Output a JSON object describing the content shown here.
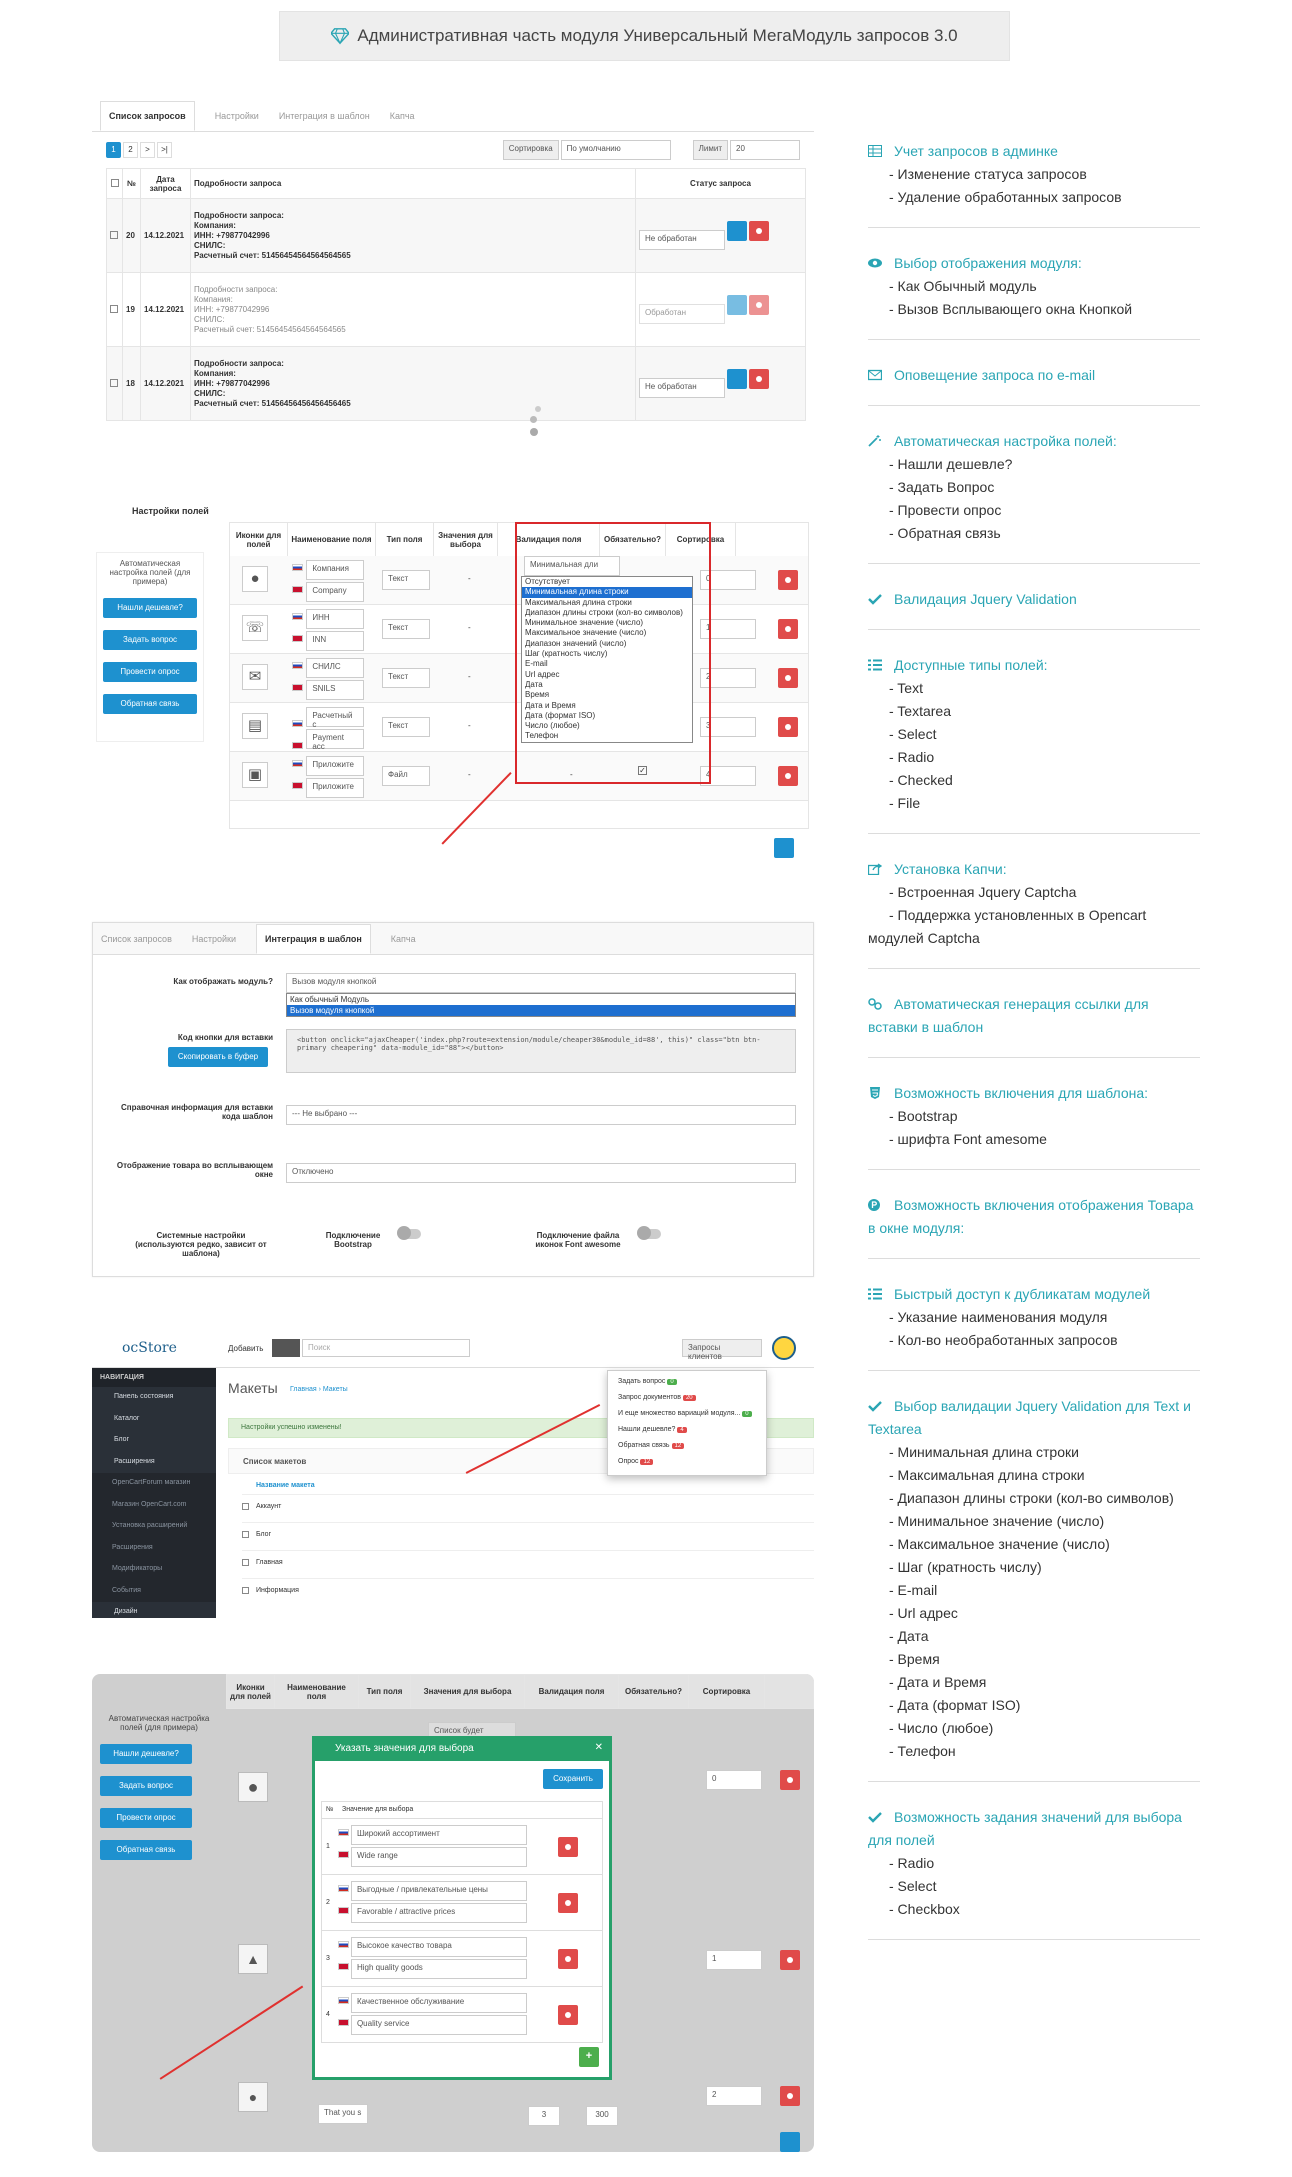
{
  "header": {
    "title": "Административная часть модуля Универсальный МегаМодуль запросов 3.0"
  },
  "colors": {
    "accent": "#2aa5b4",
    "primary": "#1e91cf",
    "danger": "#e04b4a",
    "success": "#4cae4c"
  },
  "features": [
    {
      "icon": "table-icon",
      "title": "Учет запросов в админке",
      "items": [
        "- Изменение статуса запросов",
        "- Удаление обработанных запросов"
      ]
    },
    {
      "icon": "eye-icon",
      "title": "Выбор отображения модуля:",
      "items": [
        "- Как Обычный модуль",
        "- Вызов Всплывающего окна Кнопкой"
      ]
    },
    {
      "icon": "envelope-icon",
      "title": "Оповещение запроса по e-mail",
      "items": []
    },
    {
      "icon": "magic-icon",
      "title": "Автоматическая настройка полей:",
      "items": [
        "- Нашли дешевле?",
        "- Задать Вопрос",
        "- Провести опрос",
        "- Обратная связь"
      ]
    },
    {
      "icon": "check-icon",
      "title": "Валидация Jquery Validation",
      "items": []
    },
    {
      "icon": "list-icon",
      "title": "Доступные типы полей:",
      "items": [
        "- Text",
        "- Textarea",
        "- Select",
        "- Radio",
        "- Checked",
        "- File"
      ]
    },
    {
      "icon": "share-icon",
      "title": "Установка Капчи:",
      "items": [
        "- Встроенная Jquery Captcha",
        "- Поддержка установленных в Opencart модулей Captcha"
      ]
    },
    {
      "icon": "link-icon",
      "title": "Автоматическая генерация ссылки для вставки в шаблон",
      "items": []
    },
    {
      "icon": "css3-icon",
      "title": "Возможность включения для шаблона:",
      "items": [
        "- Bootstrap",
        "- шрифта Font amesome"
      ]
    },
    {
      "icon": "product-hunt-icon",
      "title": "Возможность включения отображения Товара в окне модуля:",
      "items": []
    },
    {
      "icon": "list-icon",
      "title": "Быстрый доступ к дубликатам модулей",
      "items": [
        "- Указание наименования модуля",
        "- Кол-во необработанных запросов"
      ]
    },
    {
      "icon": "check-icon",
      "title": "Выбор валидации Jquery Validation для Text и Textarea",
      "items": [
        "- Минимальная длина строки",
        "- Максимальная длина строки",
        "- Диапазон длины строки (кол-во символов)",
        "- Минимальное значение (число)",
        "- Максимальное значение (число)",
        "- Шаг (кратность числу)",
        "- E-mail",
        "- Url адрес",
        "- Дата",
        "- Время",
        "- Дата и Время",
        "- Дата (формат ISO)",
        "- Число (любое)",
        "- Телефон"
      ]
    },
    {
      "icon": "check-icon",
      "title": "Возможность задания значений для выбора для полей",
      "items": [
        "- Radio",
        "- Select",
        "- Checkbox"
      ]
    }
  ],
  "shot1": {
    "tabs": [
      "Список запросов",
      "Настройки",
      "Интеграция в шаблон",
      "Капча"
    ],
    "pages": [
      "1",
      "2",
      ">",
      ">|"
    ],
    "sort_label": "Сортировка",
    "sort_value": "По умолчанию",
    "limit_label": "Лимит",
    "limit_value": "20",
    "headers": [
      "№",
      "Дата запроса",
      "Подробности запроса",
      "Статус запроса"
    ],
    "rows": [
      {
        "num": "20",
        "date": "14.12.2021",
        "l1": "Подробности запроса:",
        "l2": "Компания:",
        "l3": "ИНН: +79877042996",
        "l4": "СНИЛС:",
        "l5": "Расчетный счет: 51456454564564564565",
        "status": "Не обработан"
      },
      {
        "num": "19",
        "date": "14.12.2021",
        "l1": "Подробности запроса:",
        "l2": "Компания:",
        "l3": "ИНН: +79877042996",
        "l4": "СНИЛС:",
        "l5": "Расчетный счет: 51456454564564564565",
        "status": "Обработан"
      },
      {
        "num": "18",
        "date": "14.12.2021",
        "l1": "Подробности запроса:",
        "l2": "Компания:",
        "l3": "ИНН: +79877042996",
        "l4": "СНИЛС:",
        "l5": "Расчетный счет: 51456456456456456465",
        "status": "Не обработан"
      }
    ]
  },
  "shot2": {
    "title": "Настройки полей",
    "auto_note": "Автоматическая настройка полей (для примера)",
    "buttons": [
      "Нашли дешевле?",
      "Задать вопрос",
      "Провести опрос",
      "Обратная связь"
    ],
    "headers": [
      "Иконки для полей",
      "Наименование поля",
      "Тип поля",
      "Значения для выбора",
      "Валидация поля",
      "Обязательно?",
      "Сортировка"
    ],
    "rows": [
      {
        "ru": "Компания",
        "en": "Company",
        "type": "Текст",
        "sort": "0"
      },
      {
        "ru": "ИНН",
        "en": "INN",
        "type": "Текст",
        "sort": "1"
      },
      {
        "ru": "СНИЛС",
        "en": "SNILS",
        "type": "Текст",
        "sort": "2"
      },
      {
        "ru": "Расчетный с",
        "en": "Payment acc",
        "type": "Текст",
        "sort": "3"
      },
      {
        "ru": "Приложите",
        "en": "Приложите",
        "type": "Файл",
        "sort": "4"
      }
    ],
    "dash": "-",
    "validation_selected": "Минимальная дли",
    "validation_options": [
      "Отсутствует",
      "Минимальная длина строки",
      "Максимальная длина строки",
      "Диапазон длины строки (кол-во символов)",
      "Минимальное значение (число)",
      "Максимальное значение (число)",
      "Диапазон значений (число)",
      "Шаг (кратность числу)",
      "E-mail",
      "Url адрес",
      "Дата",
      "Время",
      "Дата и Время",
      "Дата (формат ISO)",
      "Число (любое)",
      "Телефон"
    ]
  },
  "shot3": {
    "tabs": [
      "Список запросов",
      "Настройки",
      "Интеграция в шаблон",
      "Капча"
    ],
    "q1": "Как отображать модуль?",
    "q1_value": "Вызов модуля кнопкой",
    "q1_options": [
      "Как обычный Модуль",
      "Вызов модуля кнопкой"
    ],
    "q2": "Код кнопки для вставки",
    "copy_btn": "Скопировать в буфер",
    "code": "<button onclick=\"ajaxCheaper('index.php?route=extension/module/cheaper30&module_id=88', this)\" class=\"btn btn-primary cheapering\" data-module_id=\"88\"></button>",
    "q3": "Справочная информация для вставки кода шаблон",
    "q3_value": "--- Не выбрано ---",
    "q4": "Отображение товара во всплывающем окне",
    "q4_value": "Отключено",
    "sys": "Системные настройки (используются редко, зависит от шаблона)",
    "bs": "Подключение Bootstrap",
    "fa": "Подключение файла иконок Font awesome"
  },
  "shot4": {
    "logo": "ocStore",
    "add": "Добавить",
    "search_ph": "Поиск",
    "requests_btn": "Запросы клиентов",
    "nav_title": "НАВИГАЦИЯ",
    "nav": [
      "Панель состояния",
      "Каталог",
      "Блог",
      "Расширения",
      "OpenCartForum магазин",
      "Магазин OpenCart.com",
      "Установка расширений",
      "Расширения",
      "Модификаторы",
      "События",
      "Дизайн"
    ],
    "page_title": "Макеты",
    "crumbs": "Главная › Макеты",
    "alert": "Настройки успешно изменены!",
    "list_title": "Список макетов",
    "col": "Название макета",
    "layouts": [
      "Аккаунт",
      "Блог",
      "Главная",
      "Информация"
    ],
    "dropdown": [
      {
        "label": "Задать вопрос",
        "count": "0"
      },
      {
        "label": "Запрос документов",
        "count": "20"
      },
      {
        "label": "И еще множество вариаций модуля...",
        "count": "0"
      },
      {
        "label": "Нашли дешевле?",
        "count": "4"
      },
      {
        "label": "Обратная связь",
        "count": "12"
      },
      {
        "label": "Опрос",
        "count": "12"
      }
    ]
  },
  "shot5": {
    "headers": [
      "Иконки для полей",
      "Наименование поля",
      "Тип поля",
      "Значения для выбора",
      "Валидация поля",
      "Обязательно?",
      "Сортировка"
    ],
    "auto_note": "Автоматическая настройка полей (для примера)",
    "buttons": [
      "Нашли дешевле?",
      "Задать вопрос",
      "Провести опрос",
      "Обратная связь"
    ],
    "list_saved": "Список будет выведен",
    "modal_title": "Указать значения для выбора",
    "save": "Сохранить",
    "col_n": "№",
    "col_v": "Значение для выбора",
    "values": [
      {
        "n": "1",
        "ru": "Широкий ассортимент",
        "en": "Wide range"
      },
      {
        "n": "2",
        "ru": "Выгодные / привлекательные цены",
        "en": "Favorable / attractive prices"
      },
      {
        "n": "3",
        "ru": "Высокое качество товара",
        "en": "High quality goods"
      },
      {
        "n": "4",
        "ru": "Качественное обслуживание",
        "en": "Quality service"
      }
    ],
    "sorts": [
      "0",
      "1",
      "2"
    ],
    "that_you": "That you s",
    "min": "3",
    "max": "300"
  }
}
